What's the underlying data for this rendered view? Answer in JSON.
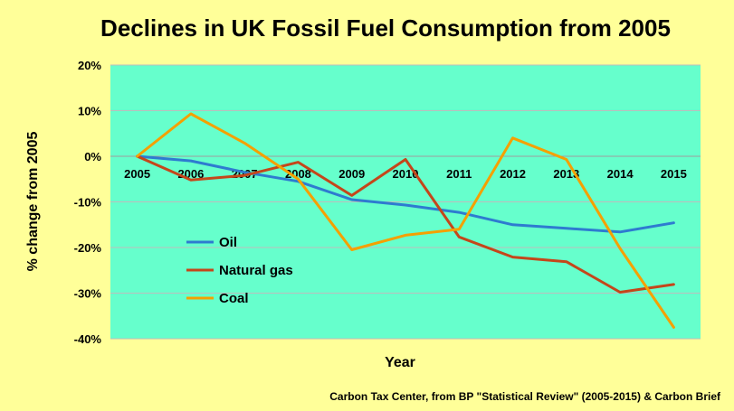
{
  "colors": {
    "page_bg": "#FFFF99",
    "plot_bg": "#66FFCC",
    "grid": "#BDBDBD",
    "oil": "#2E7BD0",
    "natural_gas": "#C5461A",
    "coal": "#F5A000"
  },
  "source_note": "Carbon Tax Center, from BP \"Statistical Review\" (2005-2015)  & Carbon Brief",
  "chart_data": {
    "type": "line",
    "title": "Declines in UK Fossil Fuel Consumption  from 2005",
    "xlabel": "Year",
    "ylabel": "% change from 2005",
    "x": [
      "2005",
      "2006",
      "2007",
      "2008",
      "2009",
      "2010",
      "2011",
      "2012",
      "2013",
      "2014",
      "2015"
    ],
    "yticks": [
      "20%",
      "10%",
      "0%",
      "-10%",
      "-20%",
      "-30%",
      "-40%"
    ],
    "ylim": [
      -40,
      20
    ],
    "grid": true,
    "legend_position": "lower-left inside plot",
    "series": [
      {
        "name": "Oil",
        "color": "#2E7BD0",
        "values": [
          0,
          -1,
          -3.5,
          -5.5,
          -9.5,
          -10.7,
          -12.3,
          -15,
          -15.8,
          -16.6,
          -14.6
        ]
      },
      {
        "name": "Natural gas",
        "color": "#C5461A",
        "values": [
          0,
          -5.2,
          -4.2,
          -1.3,
          -8.6,
          -0.7,
          -17.7,
          -22.1,
          -23.1,
          -29.8,
          -28.1
        ]
      },
      {
        "name": "Coal",
        "color": "#F5A000",
        "values": [
          0,
          9.3,
          2.9,
          -5,
          -20.5,
          -17.3,
          -16,
          4,
          -0.7,
          -20.2,
          -37.5
        ]
      }
    ]
  }
}
